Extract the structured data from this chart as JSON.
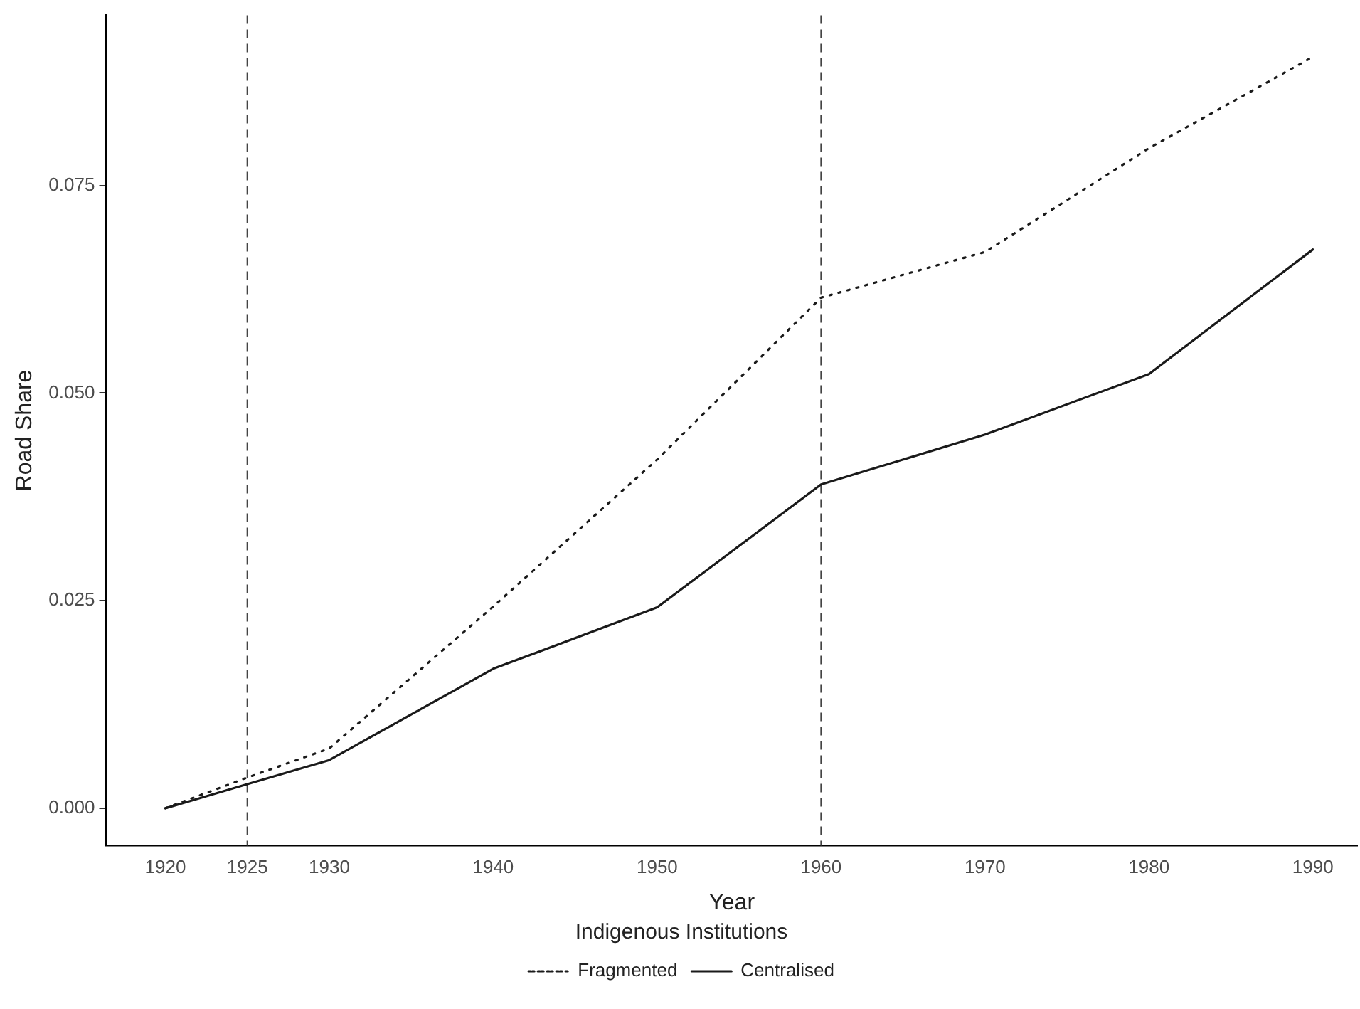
{
  "chart_data": {
    "type": "line",
    "xlabel": "Year",
    "ylabel": "Road Share",
    "legend_title": "Indigenous Institutions",
    "xlim": [
      1916.4,
      1992.7
    ],
    "xticks": [
      1920,
      1925,
      1930,
      1940,
      1950,
      1960,
      1970,
      1980,
      1990
    ],
    "ylim": [
      -0.0045,
      0.0955
    ],
    "yticks": [
      {
        "value": 0,
        "label": "0.000"
      },
      {
        "value": 0.025,
        "label": "0.025"
      },
      {
        "value": 0.05,
        "label": "0.050"
      },
      {
        "value": 0.075,
        "label": "0.075"
      }
    ],
    "grid": false,
    "legend": "bottom",
    "marker": "none",
    "series": [
      {
        "name": "Fragmented",
        "color": "#1a1a1a",
        "line_style": "dotted",
        "x": [
          1920,
          1925,
          1930,
          1940,
          1950,
          1960,
          1970,
          1980,
          1990
        ],
        "values": [
          0,
          0.0037,
          0.0072,
          0.0243,
          0.042,
          0.0615,
          0.067,
          0.0795,
          0.0905
        ]
      },
      {
        "name": "Centralised",
        "color": "#1a1a1a",
        "line_style": "solid",
        "x": [
          1920,
          1925,
          1930,
          1940,
          1950,
          1960,
          1970,
          1980,
          1990
        ],
        "values": [
          0,
          0.0029,
          0.0058,
          0.0168,
          0.0242,
          0.039,
          0.045,
          0.0523,
          0.0673
        ]
      }
    ],
    "ref_lines": [
      {
        "axis": "x",
        "value": 1925,
        "color": "#444444",
        "line_style": "dashed"
      },
      {
        "axis": "x",
        "value": 1960,
        "color": "#444444",
        "line_style": "dashed"
      }
    ]
  }
}
